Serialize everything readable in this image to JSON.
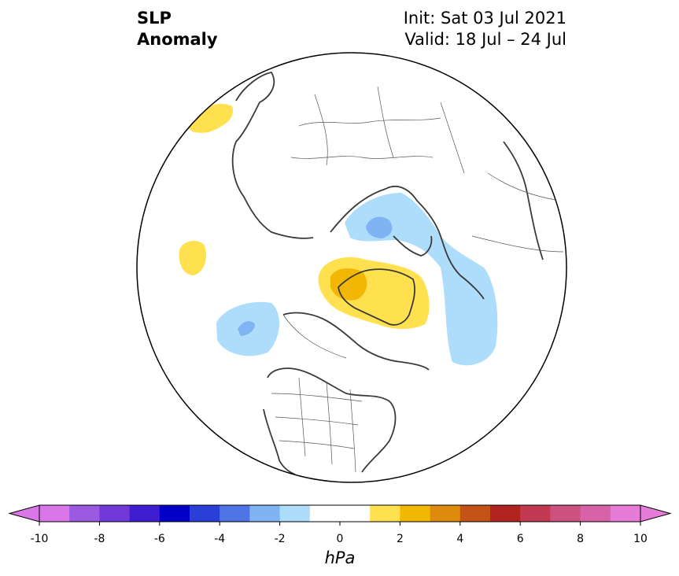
{
  "title": {
    "line1": "SLP",
    "line2": "Anomaly"
  },
  "info": {
    "init": "Init: Sat 03 Jul 2021",
    "valid": "Valid: 18 Jul – 24 Jul"
  },
  "colorbar": {
    "unit": "hPa",
    "ticks": [
      "-10",
      "-8",
      "-6",
      "-4",
      "-2",
      "0",
      "2",
      "4",
      "6",
      "8",
      "10"
    ],
    "colors": [
      "#d977e8",
      "#9b58e0",
      "#7338d8",
      "#3f1dd1",
      "#0000c8",
      "#2a3fd8",
      "#4f74e6",
      "#7fb3f3",
      "#aedcfb",
      "#ffffff",
      "#ffffff",
      "#ffe14f",
      "#f2b705",
      "#de8a0c",
      "#c55217",
      "#b0231f",
      "#c13a52",
      "#cc517f",
      "#d862a8",
      "#e67bd8"
    ],
    "extend_low_color": "#d977e8",
    "extend_high_color": "#e67bd8"
  }
}
